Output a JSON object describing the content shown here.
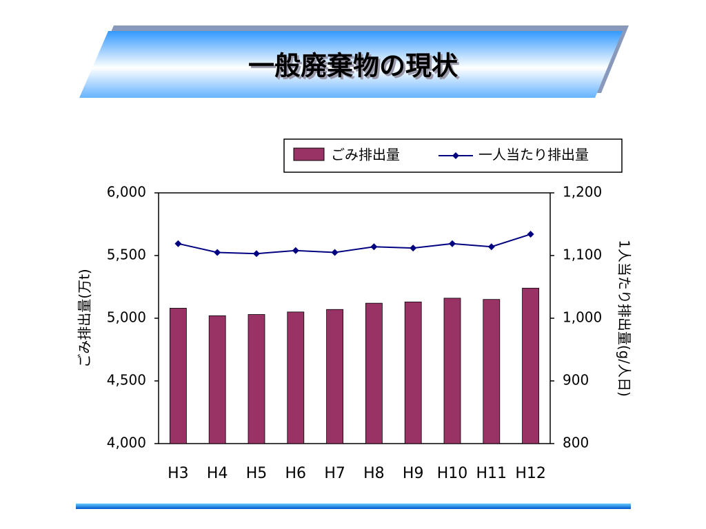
{
  "chart_data": {
    "type": "bar_line",
    "title": "一般廃棄物の現状",
    "categories": [
      "H3",
      "H4",
      "H5",
      "H6",
      "H7",
      "H8",
      "H9",
      "H10",
      "H11",
      "H12"
    ],
    "series": [
      {
        "name": "ごみ排出量",
        "type": "bar",
        "color": "#993366",
        "values": [
          5080,
          5020,
          5030,
          5050,
          5070,
          5120,
          5130,
          5160,
          5150,
          5240
        ]
      },
      {
        "name": "一人当たり排出量",
        "type": "line",
        "axis": "y2",
        "color": "#000080",
        "values": [
          1119,
          1105,
          1103,
          1108,
          1105,
          1114,
          1112,
          1119,
          1114,
          1134
        ]
      }
    ],
    "ylabel": "ごみ排出量(万t)",
    "y2label": "1人当たり排出量(g/人日)",
    "ylim": [
      4000,
      6000
    ],
    "yticks": [
      {
        "value": 4000,
        "label": "4,000"
      },
      {
        "value": 4500,
        "label": "4,500"
      },
      {
        "value": 5000,
        "label": "5,000"
      },
      {
        "value": 5500,
        "label": "5,500"
      },
      {
        "value": 6000,
        "label": "6,000"
      }
    ],
    "y2lim": [
      800,
      1200
    ],
    "y2ticks": [
      800,
      900,
      {
        "value": 1000,
        "label": "1,000"
      },
      {
        "value": 1100,
        "label": "1,100"
      },
      {
        "value": 1200,
        "label": "1,200"
      }
    ],
    "grid": false,
    "legend": "top-right"
  }
}
